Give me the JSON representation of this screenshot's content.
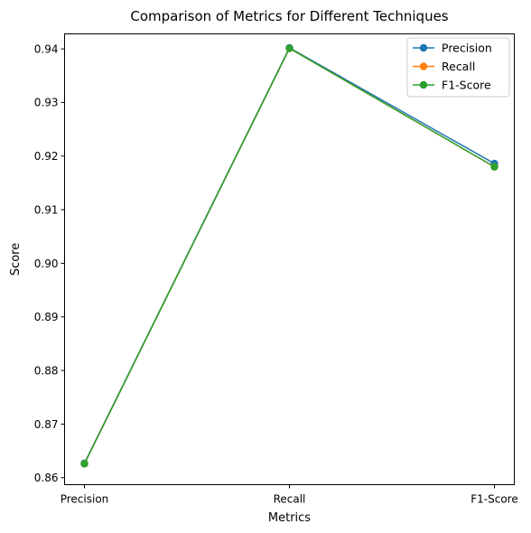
{
  "chart_data": {
    "type": "line",
    "title": "Comparison of Metrics for Different Techniques",
    "xlabel": "Metrics",
    "ylabel": "Score",
    "categories": [
      "Precision",
      "Recall",
      "F1-Score"
    ],
    "ylim": [
      0.8587,
      0.9428
    ],
    "yticks": [
      "0.86",
      "0.87",
      "0.88",
      "0.89",
      "0.90",
      "0.91",
      "0.92",
      "0.93",
      "0.94"
    ],
    "grid": false,
    "legend_position": "top-right",
    "series": [
      {
        "name": "Precision",
        "color": "#1f77b4",
        "values": [
          0.8627,
          0.9402,
          0.9186
        ]
      },
      {
        "name": "Recall",
        "color": "#ff7f0e",
        "values": [
          0.8626,
          0.9401,
          0.918
        ]
      },
      {
        "name": "F1-Score",
        "color": "#2ca02c",
        "values": [
          0.8626,
          0.9401,
          0.918
        ]
      }
    ]
  }
}
